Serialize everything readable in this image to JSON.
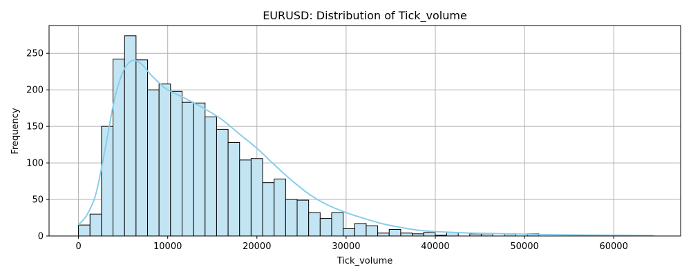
{
  "chart_data": {
    "type": "bar",
    "title": "EURUSD: Distribution of Tick_volume",
    "xlabel": "Tick_volume",
    "ylabel": "Frequency",
    "xlim": [
      -3300,
      67500
    ],
    "ylim": [
      0,
      288
    ],
    "xticks": [
      0,
      10000,
      20000,
      30000,
      40000,
      50000,
      60000
    ],
    "yticks": [
      0,
      50,
      100,
      150,
      200,
      250
    ],
    "grid": true,
    "bin_start": 0,
    "bin_width": 1290,
    "counts": [
      15,
      30,
      150,
      242,
      274,
      241,
      200,
      208,
      198,
      183,
      182,
      163,
      146,
      128,
      104,
      106,
      73,
      78,
      50,
      49,
      32,
      24,
      32,
      10,
      17,
      14,
      4,
      9,
      4,
      3,
      5,
      1,
      5,
      0,
      3,
      3,
      0,
      3,
      0,
      3
    ],
    "kde": {
      "x": [
        0,
        1000,
        2000,
        3000,
        4000,
        5000,
        6000,
        7000,
        8000,
        9000,
        10000,
        12000,
        14000,
        16000,
        18000,
        20000,
        22000,
        24000,
        26000,
        28000,
        30000,
        32000,
        34000,
        36000,
        38000,
        40000,
        42000,
        44000,
        46000,
        48000,
        50000,
        52000,
        55000,
        60000,
        64500
      ],
      "y": [
        15,
        30,
        60,
        120,
        185,
        225,
        240,
        236,
        222,
        210,
        200,
        188,
        175,
        160,
        140,
        120,
        97,
        75,
        56,
        42,
        32,
        24,
        17,
        12,
        8,
        6,
        5,
        4,
        3.5,
        3,
        2.5,
        2,
        1.5,
        1,
        0.5
      ]
    },
    "colors": {
      "bar_fill": "#c3e4f2",
      "bar_edge": "#000000",
      "kde_line": "#87ceeb",
      "grid": "#b0b0b0"
    }
  }
}
